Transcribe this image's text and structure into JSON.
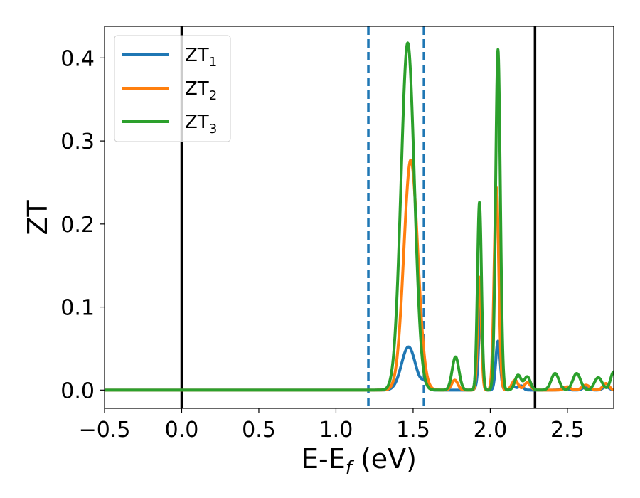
{
  "chart_data": {
    "type": "line",
    "xlabel": "E-E",
    "xlabel_sub": "f",
    "xlabel_unit": " (eV)",
    "ylabel": "ZT",
    "xlim": [
      -0.5,
      2.8
    ],
    "ylim": [
      -0.022,
      0.438
    ],
    "xticks": [
      -0.5,
      0.0,
      0.5,
      1.0,
      1.5,
      2.0,
      2.5
    ],
    "xtick_labels": [
      "−0.5",
      "0.0",
      "0.5",
      "1.0",
      "1.5",
      "2.0",
      "2.5"
    ],
    "yticks": [
      0.0,
      0.1,
      0.2,
      0.3,
      0.4
    ],
    "ytick_labels": [
      "0.0",
      "0.1",
      "0.2",
      "0.3",
      "0.4"
    ],
    "grid": false,
    "legend_position": "top-left",
    "vertical_lines": [
      {
        "x": 0.0,
        "style": "solid",
        "color": "#000000"
      },
      {
        "x": 2.29,
        "style": "solid",
        "color": "#000000"
      },
      {
        "x": 1.21,
        "style": "dashed",
        "color": "#1f77b4"
      },
      {
        "x": 1.57,
        "style": "dashed",
        "color": "#1f77b4"
      }
    ],
    "series": [
      {
        "name": "ZT",
        "name_sub": "1",
        "color": "#1f77b4",
        "baseline": [
          -0.5,
          1.21
        ],
        "peaks": [
          {
            "x": 1.47,
            "height": 0.052,
            "width": 0.045
          },
          {
            "x": 1.575,
            "height": 0.008,
            "width": 0.02
          },
          {
            "x": 1.925,
            "height": 0.01,
            "width": 0.015
          },
          {
            "x": 1.938,
            "height": 0.094,
            "width": 0.011
          },
          {
            "x": 2.05,
            "height": 0.059,
            "width": 0.014
          },
          {
            "x": 2.15,
            "height": 0.004,
            "width": 0.02
          },
          {
            "x": 2.2,
            "height": 0.005,
            "width": 0.015
          },
          {
            "x": 2.48,
            "height": 0.003,
            "width": 0.02
          },
          {
            "x": 2.62,
            "height": 0.004,
            "width": 0.02
          },
          {
            "x": 2.75,
            "height": 0.004,
            "width": 0.02
          }
        ]
      },
      {
        "name": "ZT",
        "name_sub": "2",
        "color": "#ff7f0e",
        "baseline": [
          -0.5,
          1.21
        ],
        "peaks": [
          {
            "x": 1.485,
            "height": 0.277,
            "width": 0.045
          },
          {
            "x": 1.77,
            "height": 0.012,
            "width": 0.02
          },
          {
            "x": 1.93,
            "height": 0.136,
            "width": 0.012
          },
          {
            "x": 2.04,
            "height": 0.244,
            "width": 0.015
          },
          {
            "x": 2.16,
            "height": 0.012,
            "width": 0.02
          },
          {
            "x": 2.24,
            "height": 0.009,
            "width": 0.02
          },
          {
            "x": 2.5,
            "height": 0.004,
            "width": 0.02
          },
          {
            "x": 2.62,
            "height": 0.006,
            "width": 0.025
          },
          {
            "x": 2.75,
            "height": 0.008,
            "width": 0.02
          }
        ]
      },
      {
        "name": "ZT",
        "name_sub": "3",
        "color": "#2ca02c",
        "baseline": [
          -0.5,
          1.21
        ],
        "peaks": [
          {
            "x": 1.465,
            "height": 0.418,
            "width": 0.043
          },
          {
            "x": 1.775,
            "height": 0.04,
            "width": 0.022
          },
          {
            "x": 1.93,
            "height": 0.226,
            "width": 0.013
          },
          {
            "x": 2.05,
            "height": 0.41,
            "width": 0.015
          },
          {
            "x": 2.18,
            "height": 0.018,
            "width": 0.02
          },
          {
            "x": 2.24,
            "height": 0.016,
            "width": 0.02
          },
          {
            "x": 2.42,
            "height": 0.02,
            "width": 0.025
          },
          {
            "x": 2.56,
            "height": 0.02,
            "width": 0.025
          },
          {
            "x": 2.7,
            "height": 0.015,
            "width": 0.025
          },
          {
            "x": 2.8,
            "height": 0.022,
            "width": 0.02
          }
        ]
      }
    ]
  }
}
